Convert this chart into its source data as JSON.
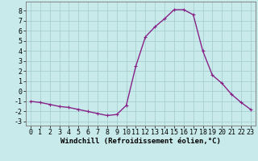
{
  "x": [
    0,
    1,
    2,
    3,
    4,
    5,
    6,
    7,
    8,
    9,
    10,
    11,
    12,
    13,
    14,
    15,
    16,
    17,
    18,
    19,
    20,
    21,
    22,
    23
  ],
  "y": [
    -1.0,
    -1.1,
    -1.3,
    -1.5,
    -1.6,
    -1.8,
    -2.0,
    -2.2,
    -2.4,
    -2.3,
    -1.4,
    2.5,
    5.4,
    6.4,
    7.2,
    8.1,
    8.1,
    7.6,
    4.0,
    1.6,
    0.8,
    -0.3,
    -1.1,
    -1.8
  ],
  "line_color": "#882288",
  "marker": "+",
  "marker_size": 3.5,
  "marker_linewidth": 0.8,
  "line_width": 1.0,
  "background_color": "#c8eaea",
  "grid_color": "#a8d0d0",
  "xlabel": "Windchill (Refroidissement éolien,°C)",
  "xlim": [
    -0.5,
    23.5
  ],
  "ylim": [
    -3.4,
    8.9
  ],
  "yticks": [
    -3,
    -2,
    -1,
    0,
    1,
    2,
    3,
    4,
    5,
    6,
    7,
    8
  ],
  "xticks": [
    0,
    1,
    2,
    3,
    4,
    5,
    6,
    7,
    8,
    9,
    10,
    11,
    12,
    13,
    14,
    15,
    16,
    17,
    18,
    19,
    20,
    21,
    22,
    23
  ],
  "xlabel_fontsize": 6.5,
  "tick_fontsize": 6.0
}
